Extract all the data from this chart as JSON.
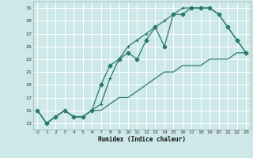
{
  "background_color": "#cce8e8",
  "grid_color": "#ffffff",
  "line_color": "#2a7a6a",
  "xlabel": "Humidex (Indice chaleur)",
  "xlim": [
    -0.5,
    23.5
  ],
  "ylim": [
    12,
    32
  ],
  "xticks": [
    0,
    1,
    2,
    3,
    4,
    5,
    6,
    7,
    8,
    9,
    10,
    11,
    12,
    13,
    14,
    15,
    16,
    17,
    18,
    19,
    20,
    21,
    22,
    23
  ],
  "yticks": [
    13,
    15,
    17,
    19,
    21,
    23,
    25,
    27,
    29,
    31
  ],
  "line1_x": [
    0,
    1,
    2,
    3,
    4,
    5,
    6,
    7,
    8,
    9,
    10,
    11,
    12,
    13,
    14,
    15,
    16,
    17,
    18,
    19,
    20,
    21,
    22,
    23
  ],
  "line1_y": [
    15,
    13,
    14,
    15,
    14,
    14,
    15,
    19,
    22,
    23,
    24,
    23,
    26,
    28,
    25,
    30,
    30,
    31,
    31,
    31,
    30,
    28,
    26,
    24
  ],
  "line2_x": [
    0,
    1,
    2,
    3,
    4,
    5,
    6,
    7,
    8,
    9,
    10,
    11,
    12,
    13,
    14,
    15,
    16,
    17,
    18,
    19,
    20,
    21,
    22,
    23
  ],
  "line2_y": [
    15,
    13,
    14,
    15,
    14,
    14,
    15,
    16,
    20,
    23,
    25,
    26,
    27,
    28,
    29,
    30,
    31,
    31,
    31,
    31,
    30,
    28,
    26,
    24
  ],
  "line3_x": [
    0,
    1,
    2,
    3,
    4,
    5,
    6,
    7,
    8,
    9,
    10,
    11,
    12,
    13,
    14,
    15,
    16,
    17,
    18,
    19,
    20,
    21,
    22,
    23
  ],
  "line3_y": [
    15,
    13,
    14,
    15,
    14,
    14,
    15,
    15,
    16,
    17,
    17,
    18,
    19,
    20,
    21,
    21,
    22,
    22,
    22,
    23,
    23,
    23,
    24,
    24
  ]
}
